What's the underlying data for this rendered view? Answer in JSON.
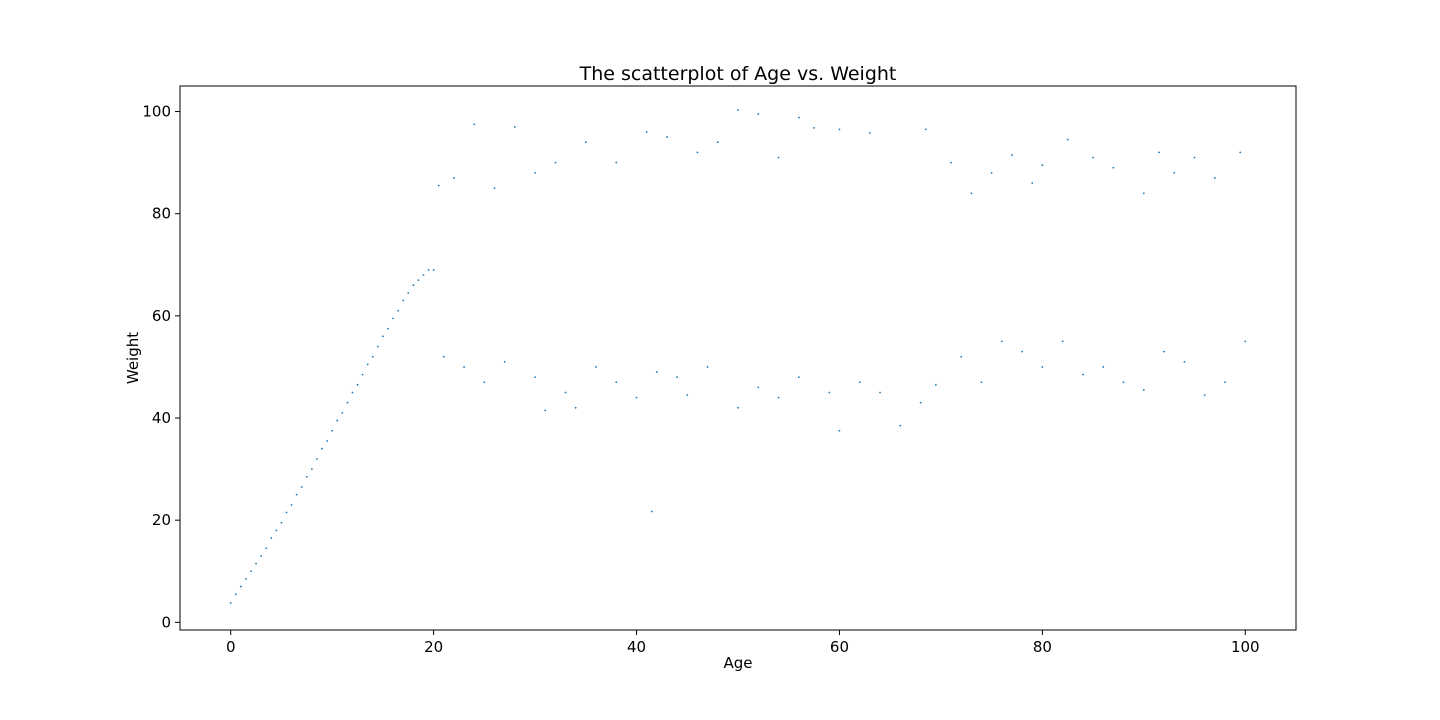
{
  "chart_data": {
    "type": "scatter",
    "title": "The scatterplot of Age vs. Weight",
    "xlabel": "Age",
    "ylabel": "Weight",
    "xlim": [
      -5,
      105
    ],
    "ylim": [
      -1.5,
      105
    ],
    "x_ticks": [
      0,
      20,
      40,
      60,
      80,
      100
    ],
    "y_ticks": [
      0,
      20,
      40,
      60,
      80,
      100
    ],
    "grid": false,
    "legend": "none",
    "colors": {
      "marker": "#1f77b4",
      "axes": "#000000",
      "background": "#ffffff"
    },
    "series": [
      {
        "points": [
          [
            0,
            3.8
          ],
          [
            0.5,
            5.5
          ],
          [
            1,
            7
          ],
          [
            1.5,
            8.5
          ],
          [
            2,
            10
          ],
          [
            2.5,
            11.5
          ],
          [
            3,
            13
          ],
          [
            3.5,
            14.5
          ],
          [
            4,
            16.5
          ],
          [
            4.5,
            18
          ],
          [
            5,
            19.5
          ],
          [
            5.5,
            21.5
          ],
          [
            6,
            23
          ],
          [
            6.5,
            25
          ],
          [
            7,
            26.5
          ],
          [
            7.5,
            28.5
          ],
          [
            8,
            30
          ],
          [
            8.5,
            32
          ],
          [
            9,
            34
          ],
          [
            9.5,
            35.5
          ],
          [
            10,
            37.5
          ],
          [
            10.5,
            39.5
          ],
          [
            11,
            41
          ],
          [
            11.5,
            43
          ],
          [
            12,
            45
          ],
          [
            12.5,
            46.5
          ],
          [
            13,
            48.5
          ],
          [
            13.5,
            50.5
          ],
          [
            14,
            52
          ],
          [
            14.5,
            54
          ],
          [
            15,
            56
          ],
          [
            15.5,
            57.5
          ],
          [
            16,
            59.5
          ],
          [
            16.5,
            61
          ],
          [
            17,
            63
          ],
          [
            17.5,
            64.5
          ],
          [
            18,
            66
          ],
          [
            18.5,
            67
          ],
          [
            19,
            68
          ],
          [
            19.5,
            69
          ],
          [
            20,
            69
          ],
          [
            20.5,
            85.5
          ],
          [
            22,
            87
          ],
          [
            24,
            97.5
          ],
          [
            26,
            85
          ],
          [
            28,
            97
          ],
          [
            30,
            88
          ],
          [
            32,
            90
          ],
          [
            35,
            94
          ],
          [
            38,
            90
          ],
          [
            41,
            96
          ],
          [
            43,
            95
          ],
          [
            46,
            92
          ],
          [
            48,
            94
          ],
          [
            50,
            100.3
          ],
          [
            52,
            99.5
          ],
          [
            54,
            91
          ],
          [
            56,
            98.8
          ],
          [
            57.5,
            96.8
          ],
          [
            60,
            96.5
          ],
          [
            63,
            95.8
          ],
          [
            68.5,
            96.5
          ],
          [
            21,
            52
          ],
          [
            23,
            50
          ],
          [
            25,
            47
          ],
          [
            27,
            51
          ],
          [
            30,
            48
          ],
          [
            31,
            41.5
          ],
          [
            33,
            45
          ],
          [
            34,
            42
          ],
          [
            36,
            50
          ],
          [
            38,
            47
          ],
          [
            40,
            44
          ],
          [
            42,
            49
          ],
          [
            44,
            48
          ],
          [
            45,
            44.5
          ],
          [
            47,
            50
          ],
          [
            50,
            42
          ],
          [
            52,
            46
          ],
          [
            54,
            44
          ],
          [
            56,
            48
          ],
          [
            59,
            45
          ],
          [
            60,
            37.5
          ],
          [
            62,
            47
          ],
          [
            64,
            45
          ],
          [
            66,
            38.5
          ],
          [
            68,
            43
          ],
          [
            69.5,
            46.5
          ],
          [
            41.5,
            21.7
          ],
          [
            71,
            90
          ],
          [
            73,
            84
          ],
          [
            75,
            88
          ],
          [
            77,
            91.5
          ],
          [
            79,
            86
          ],
          [
            80,
            89.5
          ],
          [
            82.5,
            94.5
          ],
          [
            85,
            91
          ],
          [
            87,
            89
          ],
          [
            90,
            84
          ],
          [
            91.5,
            92
          ],
          [
            93,
            88
          ],
          [
            95,
            91
          ],
          [
            97,
            87
          ],
          [
            99.5,
            92
          ],
          [
            72,
            52
          ],
          [
            74,
            47
          ],
          [
            76,
            55
          ],
          [
            78,
            53
          ],
          [
            80,
            50
          ],
          [
            82,
            55
          ],
          [
            84,
            48.5
          ],
          [
            86,
            50
          ],
          [
            88,
            47
          ],
          [
            90,
            45.5
          ],
          [
            92,
            53
          ],
          [
            94,
            51
          ],
          [
            96,
            44.5
          ],
          [
            98,
            47
          ],
          [
            100,
            55
          ]
        ]
      }
    ]
  }
}
